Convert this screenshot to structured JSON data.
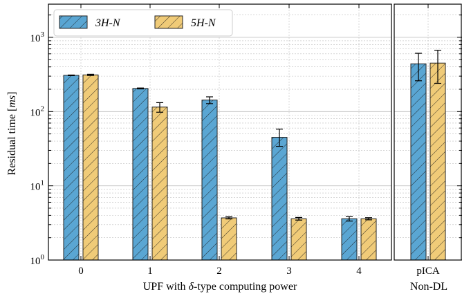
{
  "colors": {
    "series_3h": "#5aa6d3",
    "series_5h": "#f0cb78",
    "edge": "#222222",
    "grid": "#bdbdbd"
  },
  "chart_data": {
    "type": "bar",
    "ylabel_pre": "Residual time [",
    "ylabel_unit": "ms",
    "ylabel_post": "]",
    "yscale": "log",
    "ylim": [
      1,
      2800
    ],
    "yticks": [
      {
        "label_base": "10",
        "label_exp": "0",
        "value": 1
      },
      {
        "label_base": "10",
        "label_exp": "1",
        "value": 10
      },
      {
        "label_base": "10",
        "label_exp": "2",
        "value": 100
      },
      {
        "label_base": "10",
        "label_exp": "3",
        "value": 1000
      }
    ],
    "grid": true,
    "legend_position": "top-left",
    "hatch": "diagonal",
    "groups": [
      {
        "xlabel_pre": "UPF with ",
        "xlabel_symbol": "δ",
        "xlabel_post": "-type computing power",
        "categories": [
          "0",
          "1",
          "2",
          "3",
          "4"
        ]
      },
      {
        "xlabel_pre": "Non-DL",
        "xlabel_symbol": "",
        "xlabel_post": "",
        "categories": [
          "pICA"
        ]
      }
    ],
    "series": [
      {
        "name": "3H-N",
        "values": [
          308,
          205,
          143,
          45,
          3.6,
          440
        ],
        "err_low": [
          3,
          3,
          15,
          11,
          0.25,
          180
        ],
        "err_high": [
          3,
          3,
          15,
          13,
          0.25,
          170
        ]
      },
      {
        "name": "5H-N",
        "values": [
          312,
          115,
          3.7,
          3.6,
          3.6,
          450
        ],
        "err_low": [
          6,
          17,
          0.12,
          0.15,
          0.12,
          210
        ],
        "err_high": [
          6,
          17,
          0.12,
          0.15,
          0.12,
          220
        ]
      }
    ]
  }
}
